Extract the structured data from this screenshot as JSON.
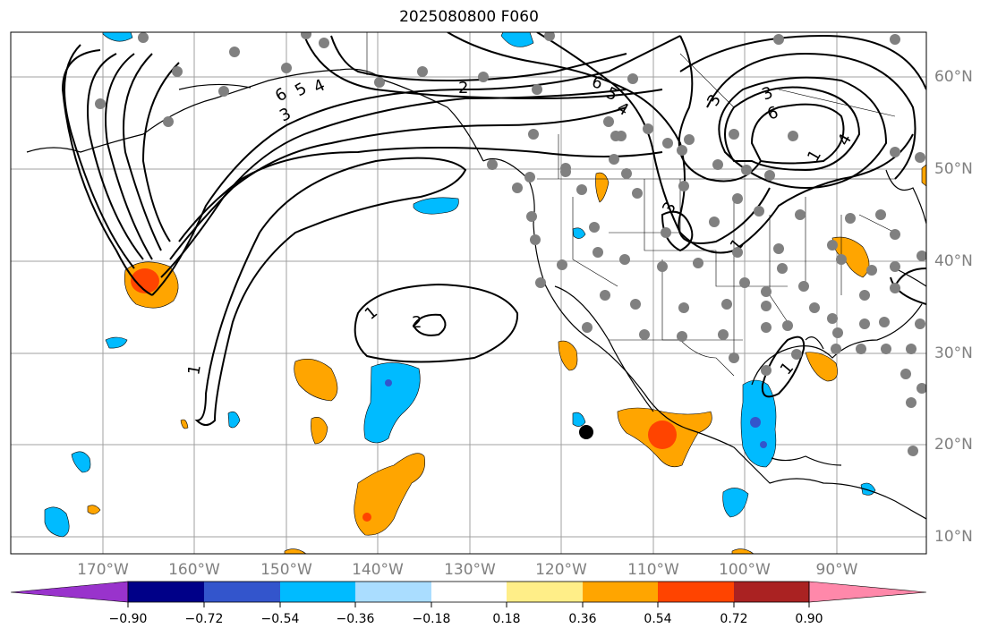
{
  "title": "2025080800 F060",
  "lat_labels": [
    "60°N",
    "50°N",
    "40°N",
    "30°N",
    "20°N",
    "10°N"
  ],
  "lon_labels": [
    "170°W",
    "160°W",
    "150°W",
    "140°W",
    "130°W",
    "120°W",
    "110°W",
    "100°W",
    "90°W"
  ],
  "contour_labels": [
    "6",
    "5",
    "4",
    "3",
    "2",
    "1",
    "2",
    "1",
    "1",
    "6",
    "5",
    "4",
    "3",
    "6",
    "3",
    "3",
    "1",
    "4",
    "1"
  ],
  "colorbar": {
    "ticks": [
      "−0.90",
      "−0.72",
      "−0.54",
      "−0.36",
      "−0.18",
      "0.18",
      "0.36",
      "0.54",
      "0.72",
      "0.90"
    ],
    "colors": [
      "#9933cc",
      "#000088",
      "#3355cc",
      "#00bbff",
      "#aaddff",
      "#ffffff",
      "#ffee88",
      "#ffa500",
      "#ff4400",
      "#aa2222",
      "#ff88aa"
    ]
  },
  "colors": {
    "blue_fill": "#00bbff",
    "orange_fill": "#ffa500",
    "red_fill": "#ff4400",
    "station_dot": "#808080",
    "gridline": "#a0a0a0"
  }
}
